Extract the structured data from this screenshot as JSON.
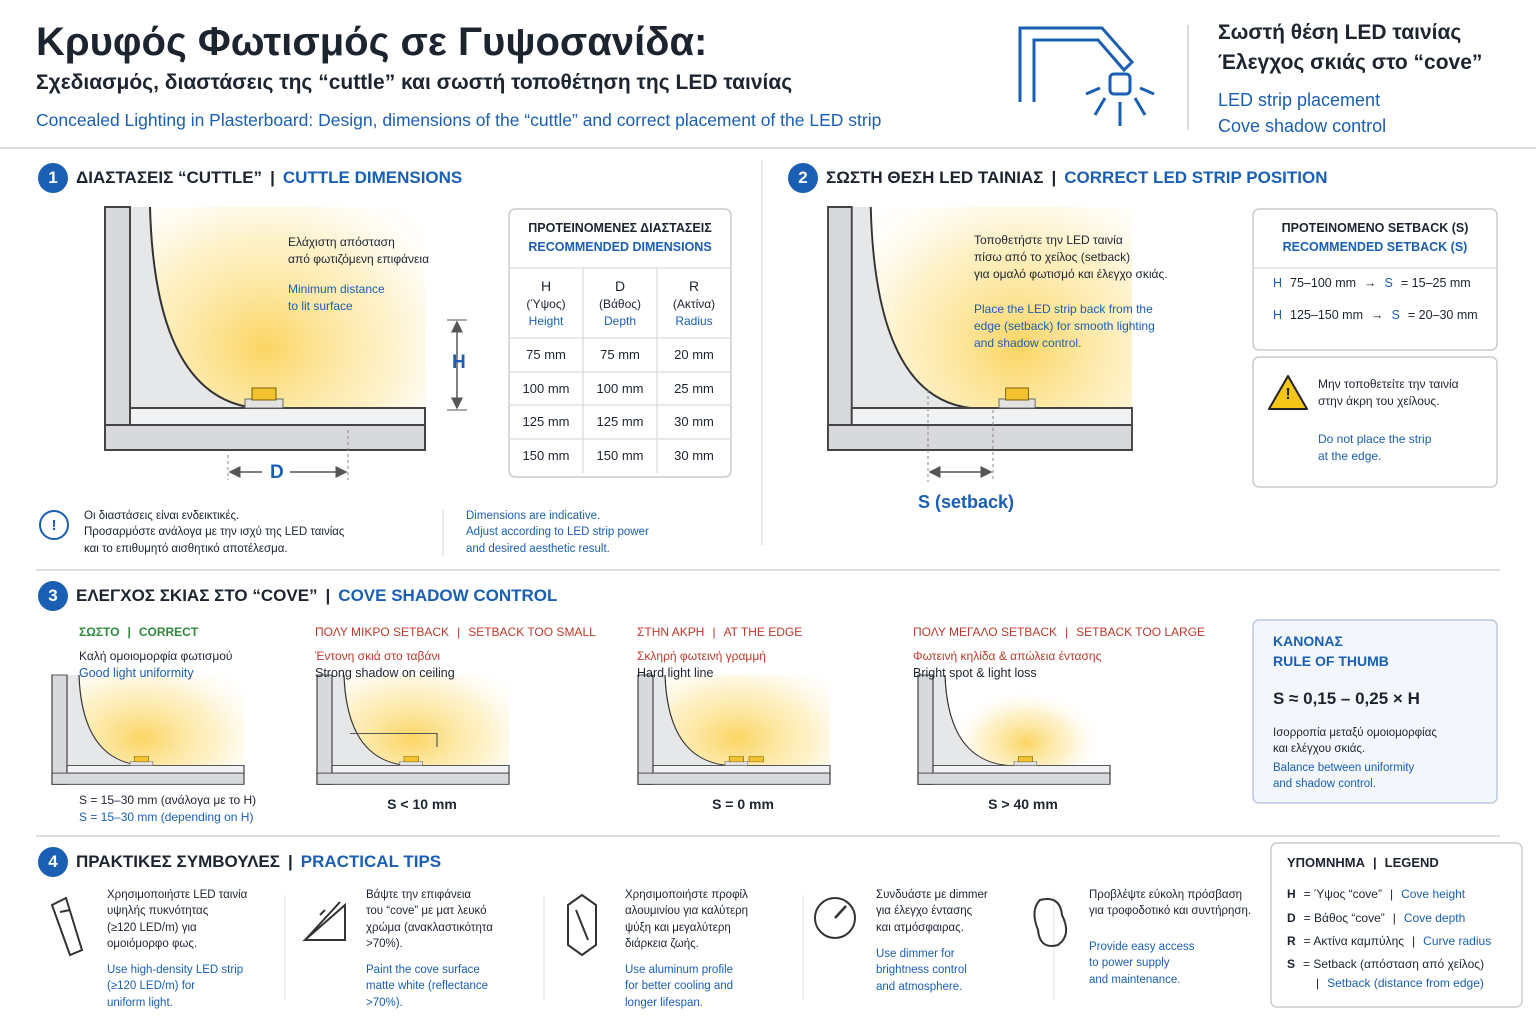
{
  "header": {
    "title": "Κρυφός Φωτισμός σε Γυψοσανίδα:",
    "subtitle": "Σχεδιασμός, διαστάσεις της “cuttle” και σωστή τοποθέτηση της LED ταινίας",
    "subtitle_en": "Concealed Lighting in Plasterboard: Design, dimensions of the “cuttle” and correct placement of the LED strip",
    "side_gr": "Σωστή θέση LED ταινίας\nΈλεγχος σκιάς στο “cove”",
    "side_en": "LED strip placement\nCove shadow control"
  },
  "sep": "|",
  "section1": {
    "number": "1",
    "title_gr": "ΔΙΑΣΤΑΣΕΙΣ “CUTTLE”",
    "title_en": "CUTTLE DIMENSIONS",
    "note_gr": "Ελάχιστη απόσταση\nαπό φωτιζόμενη επιφάνεια",
    "note_en": "Minimum distance\nto lit surface",
    "label_h": "H",
    "label_d": "D",
    "table": {
      "title_gr": "ΠΡΟΤΕΙΝΟΜΕΝΕΣ ΔΙΑΣΤΑΣΕΙΣ",
      "title_en": "RECOMMENDED DIMENSIONS",
      "columns": [
        {
          "key": "H",
          "gr": "(Ύψος)",
          "en": "Height"
        },
        {
          "key": "D",
          "gr": "(Βάθος)",
          "en": "Depth"
        },
        {
          "key": "R",
          "gr": "(Ακτίνα)",
          "en": "Radius"
        }
      ],
      "rows": [
        [
          "75 mm",
          "75 mm",
          "20 mm"
        ],
        [
          "100 mm",
          "100 mm",
          "25 mm"
        ],
        [
          "125 mm",
          "125 mm",
          "30 mm"
        ],
        [
          "150 mm",
          "150 mm",
          "30 mm"
        ]
      ]
    },
    "info_icon": "!",
    "info_gr": "Οι διαστάσεις είναι ενδεικτικές.\nΠροσαρμόστε ανάλογα με την ισχύ της LED ταινίας\nκαι το επιθυμητό αισθητικό αποτέλεσμα.",
    "info_en": "Dimensions are indicative.\nAdjust according to LED strip power\nand desired aesthetic result."
  },
  "section2": {
    "number": "2",
    "title_gr": "ΣΩΣΤΗ ΘΕΣΗ LED ΤΑΙΝΙΑΣ",
    "title_en": "CORRECT LED STRIP POSITION",
    "text_gr": "Τοποθετήστε την LED ταινία\nπίσω από το χείλος (setback)\nγια ομαλό φωτισμό και έλεγχο σκιάς.",
    "text_en": "Place the LED strip back from the\nedge (setback) for smooth lighting\nand shadow control.",
    "label_s": "S (setback)",
    "setback": {
      "title_gr": "ΠΡΟΤΕΙΝΟΜΕΝΟ SETBACK (S)",
      "title_en": "RECOMMENDED SETBACK (S)",
      "rows": [
        {
          "h_key": "H",
          "h": "75–100 mm",
          "arrow": "→",
          "s_key": "S",
          "s": "= 15–25 mm"
        },
        {
          "h_key": "H",
          "h": "125–150 mm",
          "arrow": "→",
          "s_key": "S",
          "s": "= 20–30 mm"
        }
      ]
    },
    "warning_icon": "!",
    "warning_gr": "Μην τοποθετείτε την ταινία\nστην άκρη του χείλους.",
    "warning_en": "Do not place the strip\nat the edge."
  },
  "section3": {
    "number": "3",
    "title_gr": "ΕΛΕΓΧΟΣ ΣΚΙΑΣ ΣΤΟ “COVE”",
    "title_en": "COVE SHADOW CONTROL",
    "cases": [
      {
        "heading_gr": "ΣΩΣΤΟ",
        "heading_en": "CORRECT",
        "desc_gr": "Καλή ομοιομορφία φωτισμού",
        "desc_en": "Good light uniformity",
        "result": "S = 15–30 mm (ανάλογα με το H)",
        "result_en": "S = 15–30 mm (depending on H)"
      },
      {
        "heading_gr": "ΠΟΛΥ ΜΙΚΡΟ SETBACK",
        "heading_en": "SETBACK TOO SMALL",
        "desc_gr": "Έντονη σκιά στο ταβάνι",
        "desc_en": "Strong shadow on ceiling",
        "result": "S < 10 mm"
      },
      {
        "heading_gr": "ΣΤΗΝ ΑΚΡΗ",
        "heading_en": "AT THE EDGE",
        "desc_gr": "Σκληρή φωτεινή γραμμή",
        "desc_en": "Hard light line",
        "result": "S = 0 mm"
      },
      {
        "heading_gr": "ΠΟΛΥ ΜΕΓΑΛΟ SETBACK",
        "heading_en": "SETBACK TOO LARGE",
        "desc_gr": "Φωτεινή κηλίδα & απώλεια έντασης",
        "desc_en": "Bright spot & light loss",
        "result": "S > 40 mm"
      }
    ],
    "rule": {
      "title_gr": "ΚΑΝΟΝΑΣ",
      "title_en": "RULE OF THUMB",
      "formula": "S ≈ 0,15 – 0,25 × H",
      "desc_gr": "Ισορροπία μεταξύ ομοιομορφίας\nκαι ελέγχου σκιάς.",
      "desc_en": "Balance between uniformity\nand shadow control."
    }
  },
  "section4": {
    "number": "4",
    "title_gr": "ΠΡΑΚΤΙΚΕΣ ΣΥΜΒΟΥΛΕΣ",
    "title_en": "PRACTICAL TIPS",
    "tips": [
      {
        "gr": "Χρησιμοποιήστε LED ταινία\nυψηλής πυκνότητας\n(≥120 LED/m) για\nομοιόμορφο φως.",
        "en": "Use high-density LED strip\n(≥120 LED/m) for\nuniform light."
      },
      {
        "gr": "Βάψτε την επιφάνεια\nτου “cove” με ματ λευκό\nχρώμα (ανακλαστικότητα\n>70%).",
        "en": "Paint the cove surface\nmatte white (reflectance\n>70%)."
      },
      {
        "gr": "Χρησιμοποιήστε προφίλ\nαλουμινίου για καλύτερη\nψύξη και μεγαλύτερη\nδιάρκεια ζωής.",
        "en": "Use aluminum profile\nfor better cooling and\nlonger lifespan."
      },
      {
        "gr": "Συνδυάστε με dimmer\nγια έλεγχο έντασης\nκαι ατμόσφαιρας.",
        "en": "Use dimmer for\nbrightness control\nand atmosphere."
      },
      {
        "gr": "Προβλέψτε εύκολη πρόσβαση\nγια τροφοδοτικό και συντήρηση.",
        "en": "Provide easy access\nto power supply\nand maintenance."
      }
    ],
    "legend": {
      "title_gr": "ΥΠΟΜΝΗΜΑ",
      "title_en": "LEGEND",
      "items": [
        {
          "key": "H",
          "gr": "= Ύψος “cove”",
          "en": "Cove height"
        },
        {
          "key": "D",
          "gr": "= Βάθος “cove”",
          "en": "Cove depth"
        },
        {
          "key": "R",
          "gr": "= Ακτίνα καμπύλης",
          "en": "Curve radius"
        },
        {
          "key": "S",
          "gr": "= Setback (απόσταση από χείλος)",
          "en": "Setback (distance from edge)"
        }
      ]
    }
  }
}
